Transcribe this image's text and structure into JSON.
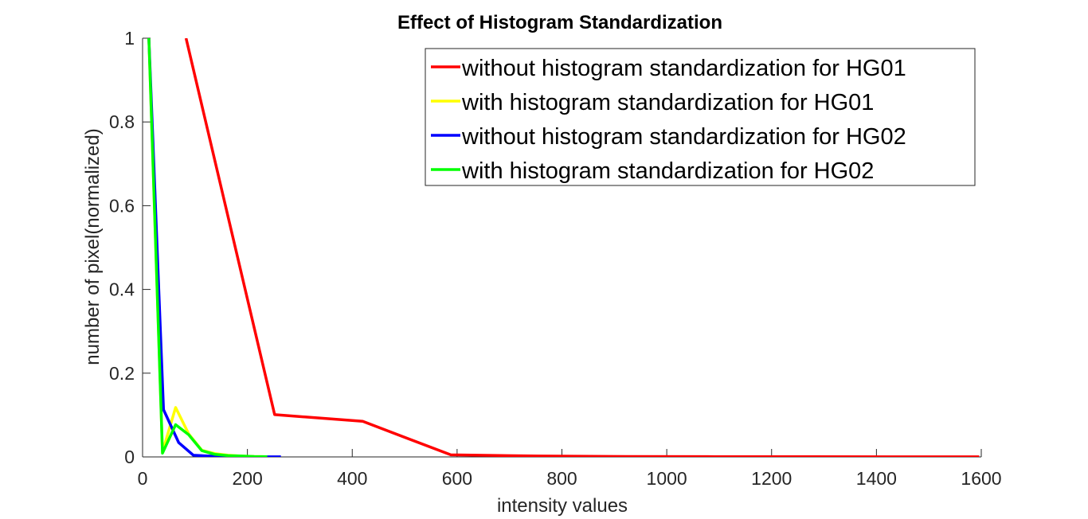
{
  "chart_data": {
    "type": "line",
    "title": "Effect of Histogram Standardization",
    "xlabel": "intensity values",
    "ylabel": "number of pixel(normalized)",
    "xlim": [
      0,
      1600
    ],
    "ylim": [
      0,
      1
    ],
    "xticks": [
      0,
      200,
      400,
      600,
      800,
      1000,
      1200,
      1400,
      1600
    ],
    "yticks": [
      0,
      0.2,
      0.4,
      0.6,
      0.8,
      1
    ],
    "xtick_labels": [
      "0",
      "200",
      "400",
      "600",
      "800",
      "1000",
      "1200",
      "1400",
      "1600"
    ],
    "ytick_labels": [
      "0",
      "0.2",
      "0.4",
      "0.6",
      "0.8",
      "1"
    ],
    "grid": false,
    "legend_position": "top-right",
    "series": [
      {
        "name": "without histogram standardization for HG01",
        "color": "#ff0000",
        "x": [
          83,
          252,
          420,
          588,
          756,
          924,
          1092,
          1260,
          1428,
          1596
        ],
        "y": [
          1.0,
          0.101,
          0.085,
          0.005,
          0.002,
          0.001,
          0.0005,
          0.0003,
          0.0002,
          0.0001
        ]
      },
      {
        "name": "with histogram standardization for HG01",
        "color": "#ffff00",
        "x": [
          12,
          38,
          63,
          88,
          113,
          138,
          163,
          188,
          213,
          238
        ],
        "y": [
          1.0,
          0.012,
          0.118,
          0.055,
          0.016,
          0.008,
          0.004,
          0.002,
          0.001,
          0.0005
        ]
      },
      {
        "name": "without histogram standardization for HG02",
        "color": "#0000ff",
        "x": [
          12,
          40,
          69,
          97,
          126,
          154,
          182,
          211,
          239,
          264
        ],
        "y": [
          1.0,
          0.113,
          0.034,
          0.004,
          0.002,
          0.001,
          0.0005,
          0.0003,
          0.0002,
          0.0001
        ]
      },
      {
        "name": "with histogram standardization for HG02",
        "color": "#00ff00",
        "x": [
          12,
          38,
          63,
          88,
          113,
          138,
          163,
          188,
          213,
          238
        ],
        "y": [
          1.0,
          0.009,
          0.077,
          0.053,
          0.015,
          0.006,
          0.003,
          0.002,
          0.001,
          0.0005
        ]
      }
    ]
  }
}
